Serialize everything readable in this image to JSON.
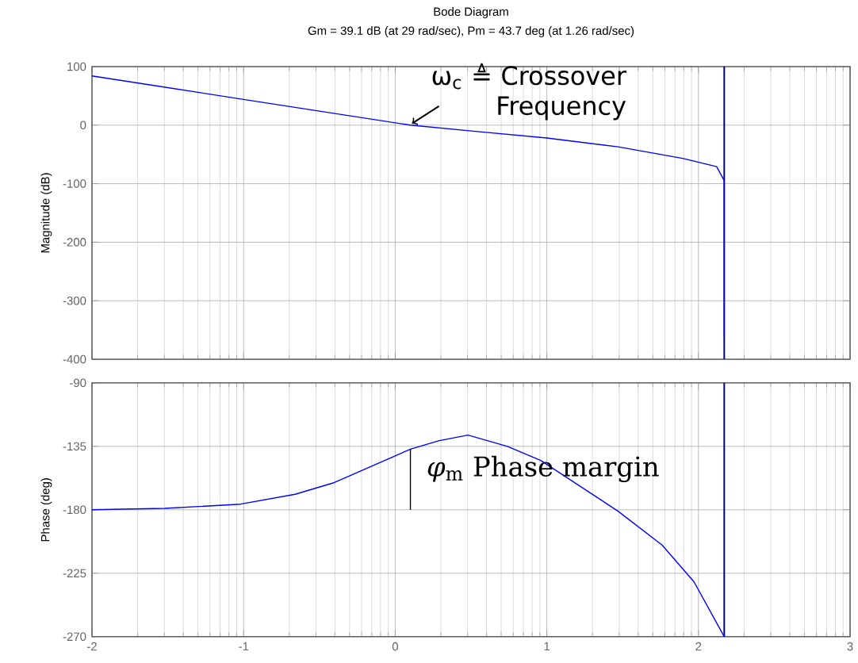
{
  "chart_data": [
    {
      "type": "line",
      "title": "Bode Diagram",
      "subtitle": "Gm = 39.1 dB (at 29 rad/sec),  Pm = 43.7 deg (at 1.26 rad/sec)",
      "ylabel": "Magnitude (dB)",
      "x": [
        -2,
        -1.5,
        -1,
        -0.5,
        0.1,
        0.5,
        1,
        1.47,
        1.9,
        2.12,
        2.17,
        2.17
      ],
      "series": [
        {
          "color": "#0000ff",
          "values": [
            84,
            64,
            44,
            24,
            0,
            -10,
            -22,
            -37,
            -57,
            -71,
            -95,
            -360
          ]
        }
      ],
      "xlim": [
        -2,
        3
      ],
      "xticks": [
        -2,
        -1,
        0,
        1,
        2,
        3
      ],
      "ylim": [
        -400,
        100
      ],
      "yticks": [
        -400,
        -300,
        -200,
        -100,
        0,
        100
      ],
      "tick_labels": "y",
      "grid": true,
      "ref_lines": [
        {
          "axis": "x",
          "value": 2.17,
          "color": "#000080"
        }
      ],
      "annotations": [
        {
          "text": "ω$_{c}$ ≜ Crossover Frequency",
          "x": 0.1,
          "y": 0
        }
      ]
    },
    {
      "type": "line",
      "ylabel": "Phase (deg)",
      "x": [
        -2,
        -1.52,
        -1.02,
        -0.66,
        -0.41,
        0.1,
        0.29,
        0.48,
        0.74,
        0.96,
        1.47,
        1.76,
        1.97,
        2.17
      ],
      "series": [
        {
          "color": "#0000ff",
          "values": [
            -180,
            -179,
            -176,
            -169,
            -161,
            -137,
            -131,
            -127,
            -135,
            -145,
            -181,
            -205,
            -231,
            -270
          ]
        },
        {
          "color": "#000000",
          "x": [
            0.1,
            0.1
          ],
          "values": [
            -180,
            -137
          ]
        }
      ],
      "xlim": [
        -2,
        3
      ],
      "xticks": [
        -2,
        -1,
        0,
        1,
        2,
        3
      ],
      "ylim": [
        -270,
        -90
      ],
      "yticks": [
        -270,
        -225,
        -180,
        -135,
        -90
      ],
      "grid": true,
      "ref_lines": [
        {
          "axis": "x",
          "value": 2.17,
          "color": "#000080"
        }
      ],
      "annotations": [
        {
          "text": "*φ*$_{m}$  Phase margin",
          "x": 0.1,
          "y": -137
        }
      ]
    }
  ]
}
